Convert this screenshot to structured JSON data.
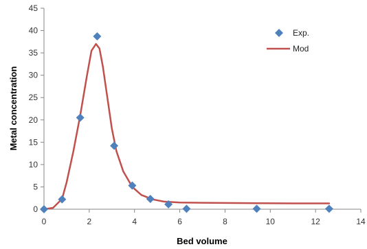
{
  "chart_data": {
    "type": "scatter",
    "xlabel": "Bed volume",
    "ylabel": "Metal concentration",
    "xlim": [
      0,
      14
    ],
    "ylim": [
      0,
      45
    ],
    "x_ticks": [
      "0",
      "2",
      "4",
      "6",
      "8",
      "10",
      "12",
      "14"
    ],
    "y_ticks": [
      "0",
      "5",
      "10",
      "15",
      "20",
      "25",
      "30",
      "35",
      "40",
      "45"
    ],
    "grid": false,
    "legend_position": "top-right",
    "series": [
      {
        "name": "Exp.",
        "kind": "scatter",
        "marker": "diamond",
        "color": "#4F81BD",
        "x": [
          0,
          0.8,
          1.6,
          2.35,
          3.1,
          3.9,
          4.7,
          5.5,
          6.3,
          9.4,
          12.6
        ],
        "y": [
          0,
          2.2,
          20.5,
          38.7,
          14.2,
          5.3,
          2.3,
          1.1,
          0.1,
          0.1,
          0.1
        ]
      },
      {
        "name": "Mod",
        "kind": "line",
        "color": "#C0504D",
        "x": [
          0,
          0.4,
          0.8,
          1.0,
          1.3,
          1.6,
          1.9,
          2.1,
          2.3,
          2.45,
          2.6,
          2.8,
          3.0,
          3.2,
          3.5,
          3.9,
          4.3,
          4.8,
          5.3,
          6.0,
          7.0,
          8.0,
          9.5,
          11.0,
          12.6
        ],
        "y": [
          0,
          0.3,
          2.3,
          6.0,
          13.0,
          21.0,
          30.0,
          35.5,
          37.0,
          36.0,
          32.0,
          25.0,
          18.0,
          13.0,
          8.5,
          5.0,
          3.2,
          2.2,
          1.7,
          1.5,
          1.45,
          1.4,
          1.35,
          1.3,
          1.3
        ]
      }
    ]
  }
}
